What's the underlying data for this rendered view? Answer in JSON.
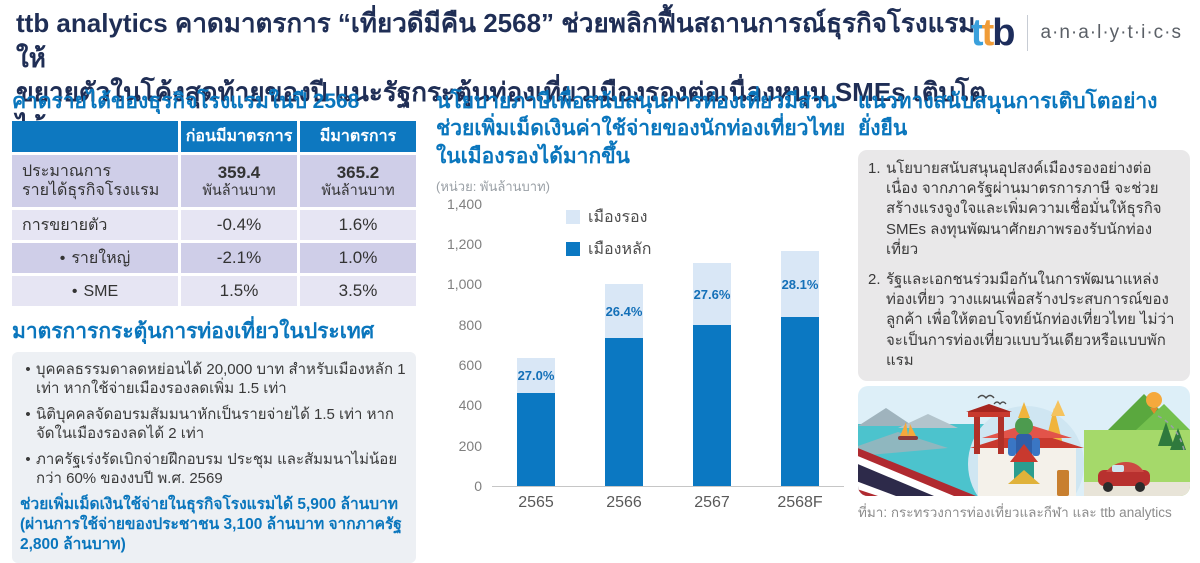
{
  "header": {
    "title": "ttb analytics คาดมาตรการ “เที่ยวดีมีคืน 2568” ช่วยพลิกฟื้นสถานการณ์ธุรกิจโรงแรมให้\nขยายตัวในโค้งสุดท้ายของปี แนะรัฐกระตุ้นท่องเที่ยวเมืองรองต่อเนื่องหนุน SMEs เติบโตได้",
    "logo": {
      "t1": "t",
      "t2": "t",
      "b": "b",
      "suffix": "a·n·a·l·y·t·i·c·s"
    }
  },
  "left": {
    "table_title": "คาดรายได้ของธุรกิจโรงแรมในปี  2568",
    "bullet_char": "•",
    "table": {
      "col_headers": [
        "ก่อนมีมาตรการ",
        "มีมาตรการ"
      ],
      "rows": [
        {
          "label": "ประมาณการ\nรายได้ธุรกิจโรงแรม",
          "before_value": "359.4",
          "before_unit": "พันล้านบาท",
          "after_value": "365.2",
          "after_unit": "พันล้านบาท"
        },
        {
          "label": "การขยายตัว",
          "before_value": "-0.4%",
          "after_value": "1.6%"
        },
        {
          "label": "รายใหญ่",
          "before_value": "-2.1%",
          "after_value": "1.0%"
        },
        {
          "label": "SME",
          "before_value": "1.5%",
          "after_value": "3.5%"
        }
      ]
    },
    "measures_title": "มาตรการกระตุ้นการท่องเที่ยวในประเทศ",
    "bullets": [
      "บุคคลธรรมดาลดหย่อนได้  20,000 บาท สำหรับเมืองหลัก 1 เท่า หากใช้จ่ายเมืองรองลดเพิ่ม  1.5 เท่า",
      "นิติบุคคลจัดอบรมสัมมนาหักเป็นรายจ่ายได้  1.5 เท่า หากจัดในเมืองรองลดได้  2 เท่า",
      "ภาครัฐเร่งรัดเบิกจ่ายฝึกอบรม  ประชุม และสัมมนาไม่น้อยกว่า 60% ของงบปี  พ.ศ. 2569"
    ],
    "summary": "ช่วยเพิ่มเม็ดเงินใช้จ่ายในธุรกิจโรงแรมได้  5,900 ล้านบาท (ผ่านการใช้จ่ายของประชาชน  3,100 ล้านบาท  จากภาครัฐ 2,800 ล้านบาท)"
  },
  "middle": {
    "heading": "นโยบายภาษีเพื่อสนับสนุนการท่องเที่ยวมีส่วน\nช่วยเพิ่มเม็ดเงินค่าใช้จ่ายของนักท่องเที่ยวไทย\nในเมืองรองได้มากขึ้น",
    "unit_note": "(หน่วย: พันล้านบาท)"
  },
  "chart_data": {
    "type": "bar",
    "stacked": true,
    "title": "นโยบายภาษีเพื่อสนับสนุนการท่องเที่ยวมีส่วนช่วยเพิ่มเม็ดเงินค่าใช้จ่ายของนักท่องเที่ยวไทยในเมืองรองได้มากขึ้น",
    "unit_label": "(หน่วย: พันล้านบาท)",
    "categories": [
      "2565",
      "2566",
      "2567",
      "2568F"
    ],
    "series": [
      {
        "name": "เมืองหลัก",
        "color": "#0b78c2",
        "values": [
          463,
          736,
          800,
          838
        ]
      },
      {
        "name": "เมืองรอง",
        "color": "#d9e7f6",
        "values": [
          171,
          264,
          305,
          327
        ]
      }
    ],
    "segment_labels": [
      "27.0%",
      "26.4%",
      "27.6%",
      "28.1%"
    ],
    "legend": [
      {
        "label": "เมืองรอง",
        "color": "#d9e7f6"
      },
      {
        "label": "เมืองหลัก",
        "color": "#0b78c2"
      }
    ],
    "legend_position": "top",
    "grid": false,
    "ylim": [
      0,
      1400
    ],
    "ytick_step": 200,
    "yticks": [
      "0",
      "200",
      "400",
      "600",
      "800",
      "1,000",
      "1,200",
      "1,400"
    ]
  },
  "right": {
    "heading": "แนวทางสนับสนุนการเติบโตอย่างยั่งยืน",
    "items": [
      {
        "num": "1.",
        "text": "นโยบายสนับสนุนอุปสงค์เมืองรองอย่างต่อเนื่อง จากภาครัฐผ่านมาตรการภาษี จะช่วยสร้างแรงจูงใจและเพิ่มความเชื่อมั่นให้ธุรกิจ SMEs ลงทุนพัฒนาศักยภาพรองรับนักท่องเที่ยว"
      },
      {
        "num": "2.",
        "text": "รัฐและเอกชนร่วมมือกันในการพัฒนาแหล่งท่องเที่ยว วางแผนเพื่อสร้างประสบการณ์ของลูกค้า เพื่อให้ตอบโจทย์นักท่องเที่ยวไทย ไม่ว่าจะเป็นการท่องเที่ยวแบบวันเดียวหรือแบบพักแรม"
      }
    ],
    "source": "ที่มา: กระทรวงการท่องเที่ยวและกีฬา  และ ttb analytics"
  }
}
